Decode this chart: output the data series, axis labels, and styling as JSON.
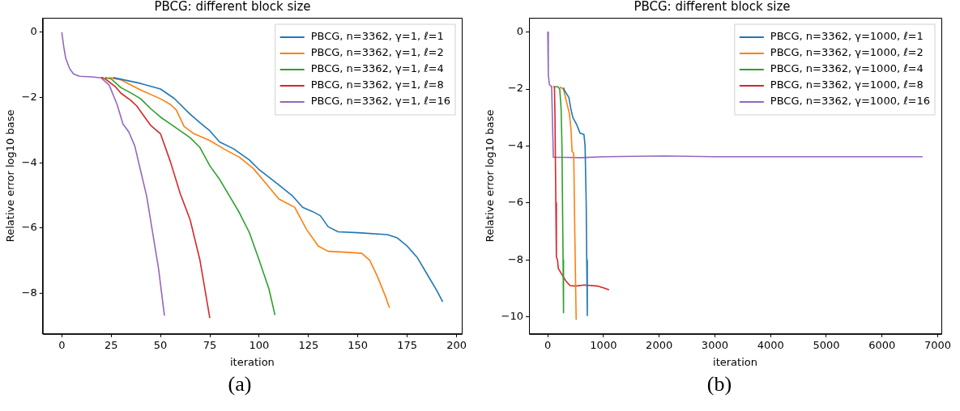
{
  "chart_data": [
    {
      "type": "line",
      "title": "PBCG: different block size",
      "xlabel": "iteration",
      "ylabel": "Relative error log10 base",
      "annotations": [
        "(a)"
      ],
      "legend": "top right",
      "grid": false,
      "marker": "none",
      "line_style": "solid",
      "xlim": [
        -9.65,
        202.65
      ],
      "ylim": [
        -9.24,
        0.44
      ],
      "xticks": [
        0,
        25,
        50,
        75,
        100,
        125,
        150,
        175,
        200
      ],
      "yticks": [
        {
          "value": 0,
          "label": "0"
        },
        {
          "value": -2,
          "label": "−2"
        },
        {
          "value": -4,
          "label": "−4"
        },
        {
          "value": -6,
          "label": "−6"
        },
        {
          "value": -8,
          "label": "−8"
        }
      ],
      "series": [
        {
          "name": "PBCG, n=3362, γ=1, ℓ=1",
          "color": "#1f77b4",
          "x": [
            26,
            40,
            50,
            57,
            65,
            70,
            75,
            80,
            87,
            95,
            100,
            110,
            117,
            122,
            127,
            131,
            135,
            140,
            150,
            165,
            170,
            175,
            180,
            185,
            190,
            193
          ],
          "values": [
            -1.39,
            -1.57,
            -1.74,
            -2.03,
            -2.51,
            -2.77,
            -3.02,
            -3.36,
            -3.57,
            -3.91,
            -4.21,
            -4.68,
            -5.02,
            -5.36,
            -5.49,
            -5.62,
            -5.96,
            -6.11,
            -6.14,
            -6.2,
            -6.3,
            -6.55,
            -6.89,
            -7.4,
            -7.91,
            -8.26
          ]
        },
        {
          "name": "PBCG, n=3362, γ=1, ℓ=2",
          "color": "#ff7f0e",
          "x": [
            24,
            30,
            40,
            50,
            55,
            58,
            62,
            67,
            75,
            82,
            90,
            97,
            103,
            110,
            118,
            124,
            130,
            135,
            145,
            152,
            156,
            160,
            164,
            166
          ],
          "values": [
            -1.39,
            -1.46,
            -1.77,
            -2.04,
            -2.21,
            -2.38,
            -2.89,
            -3.11,
            -3.32,
            -3.57,
            -3.83,
            -4.17,
            -4.6,
            -5.11,
            -5.36,
            -6.04,
            -6.55,
            -6.71,
            -6.74,
            -6.77,
            -6.98,
            -7.49,
            -8.09,
            -8.44
          ]
        },
        {
          "name": "PBCG, n=3362, γ=1, ℓ=4",
          "color": "#2ca02c",
          "x": [
            22,
            25,
            30,
            35,
            40,
            45,
            50,
            55,
            60,
            65,
            70,
            75,
            80,
            85,
            90,
            95,
            100,
            105,
            108
          ],
          "values": [
            -1.39,
            -1.43,
            -1.7,
            -1.86,
            -2.04,
            -2.34,
            -2.6,
            -2.81,
            -3.02,
            -3.23,
            -3.53,
            -4.09,
            -4.51,
            -5.02,
            -5.53,
            -6.13,
            -6.98,
            -7.87,
            -8.66
          ]
        },
        {
          "name": "PBCG, n=3362, γ=1, ℓ=8",
          "color": "#d62728",
          "x": [
            20,
            22,
            27,
            30,
            35,
            38,
            42,
            45,
            50,
            55,
            60,
            65,
            70,
            75
          ],
          "values": [
            -1.38,
            -1.43,
            -1.66,
            -1.87,
            -2.09,
            -2.26,
            -2.6,
            -2.85,
            -3.11,
            -3.96,
            -4.94,
            -5.74,
            -6.98,
            -8.75
          ]
        },
        {
          "name": "PBCG, n=3362, γ=1, ℓ=16",
          "color": "#9467bd",
          "x": [
            0,
            1,
            2,
            4,
            6,
            9,
            15,
            20,
            24,
            28,
            31,
            34,
            37,
            40,
            43,
            46,
            49,
            52
          ],
          "values": [
            0,
            -0.45,
            -0.8,
            -1.12,
            -1.28,
            -1.35,
            -1.37,
            -1.4,
            -1.62,
            -2.21,
            -2.81,
            -3.06,
            -3.49,
            -4.26,
            -5.02,
            -6.13,
            -7.23,
            -8.68
          ]
        }
      ]
    },
    {
      "type": "line",
      "title": "PBCG: different block size",
      "xlabel": "iteration",
      "ylabel": "Relative error log10 base",
      "annotations": [
        "(b)"
      ],
      "legend": "top right",
      "grid": false,
      "marker": "none",
      "line_style": "solid",
      "xlim": [
        -336,
        7066
      ],
      "ylim": [
        -10.6,
        0.5
      ],
      "xticks": [
        0,
        1000,
        2000,
        3000,
        4000,
        5000,
        6000,
        7000
      ],
      "yticks": [
        {
          "value": 0,
          "label": "0"
        },
        {
          "value": -2,
          "label": "−2"
        },
        {
          "value": -4,
          "label": "−4"
        },
        {
          "value": -6,
          "label": "−6"
        },
        {
          "value": -8,
          "label": "−8"
        },
        {
          "value": -10,
          "label": "−10"
        }
      ],
      "series": [
        {
          "name": "PBCG, n=3362, γ=1000, ℓ=1",
          "color": "#1f77b4",
          "x": [
            282,
            300,
            380,
            410,
            450,
            520,
            580,
            650,
            670,
            690,
            700,
            710
          ],
          "values": [
            -1.95,
            -2.05,
            -2.3,
            -2.65,
            -3.0,
            -3.25,
            -3.55,
            -3.6,
            -4.0,
            -6,
            -8,
            -9.95
          ]
        },
        {
          "name": "PBCG, n=3362, γ=1000, ℓ=2",
          "color": "#ff7f0e",
          "x": [
            215,
            282,
            355,
            388,
            417,
            437,
            466,
            485,
            510
          ],
          "values": [
            -1.93,
            -2.0,
            -2.6,
            -2.85,
            -3.4,
            -4.2,
            -4.25,
            -7,
            -10.1
          ]
        },
        {
          "name": "PBCG, n=3362, γ=1000, ℓ=4",
          "color": "#2ca02c",
          "x": [
            130,
            180,
            215,
            240,
            255,
            265,
            275,
            283
          ],
          "values": [
            -1.92,
            -1.92,
            -2.0,
            -2.7,
            -4,
            -6,
            -8,
            -9.85
          ]
        },
        {
          "name": "PBCG, n=3362, γ=1000, ℓ=8",
          "color": "#d62728",
          "x": [
            100,
            120,
            130,
            145,
            155,
            175,
            190,
            250,
            330,
            400,
            500,
            650,
            900,
            1000,
            1100
          ],
          "values": [
            -1.91,
            -1.92,
            -3.0,
            -6,
            -7.9,
            -8.0,
            -8.3,
            -8.5,
            -8.75,
            -8.9,
            -8.92,
            -8.88,
            -8.92,
            -8.98,
            -9.05
          ]
        },
        {
          "name": "PBCG, n=3362, γ=1000, ℓ=16",
          "color": "#9467bd",
          "x": [
            0,
            10,
            30,
            60,
            70,
            100,
            300,
            600,
            1000,
            2100,
            3000,
            6730
          ],
          "values": [
            0,
            -1.5,
            -1.85,
            -1.9,
            -1.95,
            -4.4,
            -4.4,
            -4.41,
            -4.38,
            -4.35,
            -4.38,
            -4.38
          ]
        }
      ]
    }
  ]
}
